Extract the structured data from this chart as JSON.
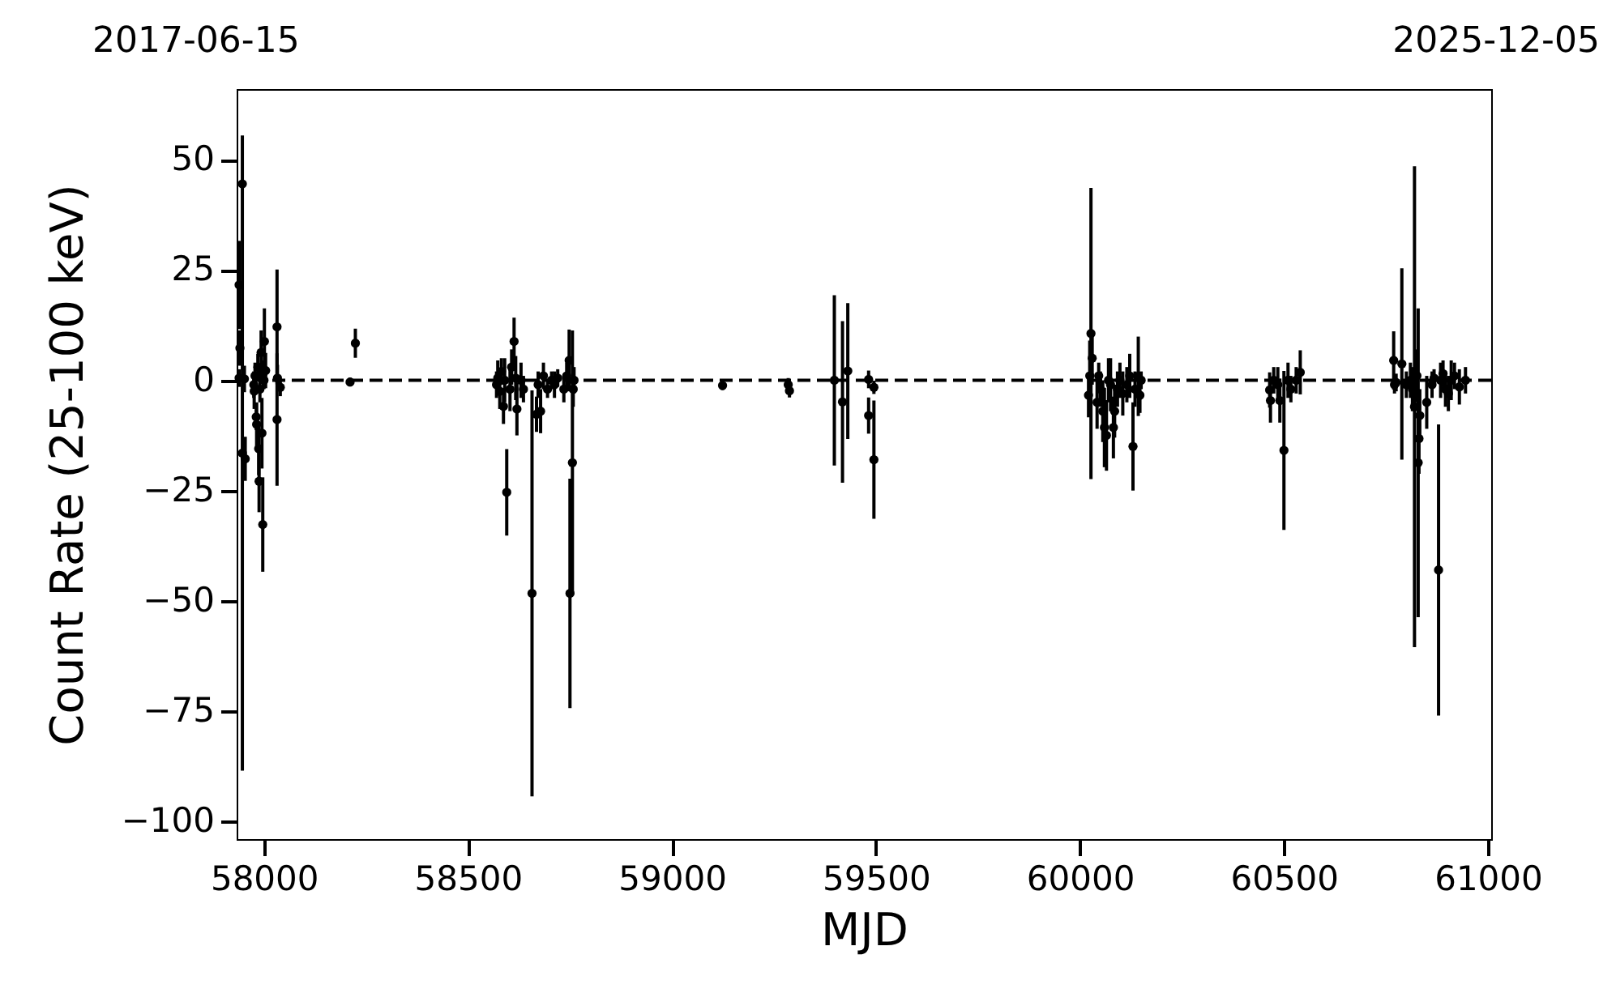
{
  "chart_data": {
    "type": "scatter",
    "xlabel": "MJD",
    "ylabel": "Count Rate (25-100 keV)",
    "annotations": [
      "2017-06-15",
      "2025-12-05"
    ],
    "xlim": [
      57933,
      61008
    ],
    "xticks": [
      58000,
      58500,
      59000,
      59500,
      60000,
      60500,
      61000
    ],
    "ylim": [
      -104,
      66
    ],
    "yticks": [
      -100,
      -75,
      -50,
      -25,
      0,
      25,
      50
    ],
    "grid": false,
    "marker": "circle",
    "ref_lines": [
      {
        "axis": "y",
        "value": 0,
        "color": "#000000",
        "line_style": "dashed"
      }
    ],
    "series": [
      {
        "color": "#000000",
        "x": [
          57947,
          57939,
          57941,
          57939,
          57952,
          57947,
          57954,
          57975,
          57976,
          57978,
          57981,
          57982,
          57987,
          57988,
          57997,
          57995,
          57993,
          58001,
          58004,
          57998,
          57990,
          58000,
          57985,
          58032,
          58032,
          58033,
          58040,
          58211,
          58224,
          58613,
          58570,
          58573,
          58578,
          58582,
          58587,
          58590,
          58595,
          58603,
          58607,
          58617,
          58620,
          58630,
          58636,
          58657,
          58668,
          58678,
          58672,
          58685,
          58695,
          58705,
          58712,
          58720,
          58735,
          58742,
          58748,
          58750,
          58756,
          58758,
          58760,
          59124,
          59285,
          59288,
          59398,
          59418,
          59431,
          59482,
          59482,
          59495,
          59495,
          60027,
          60021,
          60024,
          60030,
          60042,
          60046,
          60050,
          60056,
          60060,
          60065,
          60070,
          60075,
          60082,
          60085,
          60092,
          60098,
          60105,
          60115,
          60122,
          60130,
          60135,
          60143,
          60147,
          60150,
          60465,
          60467,
          60475,
          60485,
          60490,
          60500,
          60510,
          60517,
          60530,
          60540,
          60769,
          60771,
          60775,
          60789,
          60800,
          60810,
          60815,
          60820,
          60826,
          60829,
          60831,
          60833,
          60850,
          60863,
          60868,
          60879,
          60884,
          60890,
          60896,
          60903,
          60910,
          60918,
          60930,
          60945
        ],
        "values": [
          44.5,
          21.6,
          7.3,
          0.5,
          0.3,
          -16.5,
          -17.8,
          -1,
          -2.5,
          1,
          -8.3,
          -10,
          -15.5,
          -22.9,
          -32.7,
          -12,
          6.3,
          8.8,
          2.2,
          1.5,
          -2,
          0,
          3,
          12.1,
          -8.9,
          0.5,
          -1.6,
          -0.4,
          8.4,
          8.8,
          -1,
          0.5,
          -2.5,
          2,
          -5.9,
          0,
          -25.4,
          -2,
          3,
          0.5,
          -6.5,
          0,
          -2,
          -48.3,
          -7.7,
          -7,
          -1,
          1,
          -2,
          0,
          -1,
          0.5,
          -2,
          1,
          4.5,
          -48.3,
          -18.7,
          -2,
          0,
          -1.2,
          -1,
          -2.4,
          0,
          -4.9,
          2.1,
          0.2,
          -8,
          -1.6,
          -18,
          10.6,
          -3.4,
          1,
          5,
          -5,
          1,
          -2,
          -7,
          -10.7,
          -12.5,
          0,
          -1,
          -10.7,
          -7,
          -2,
          0,
          -3,
          -1,
          1,
          -15,
          -2,
          0.9,
          -3.4,
          0,
          -2.2,
          -4.6,
          0,
          -1,
          -4.6,
          -15.9,
          0,
          -2,
          0,
          1.8,
          4.5,
          -1,
          -0.5,
          3.7,
          -1,
          0,
          -2,
          -6,
          1,
          -18.7,
          -13.2,
          -8,
          -5,
          -1,
          0.5,
          -43,
          0,
          1.5,
          -2,
          -3,
          0,
          1,
          -1.5,
          0
        ],
        "errors": [
          null,
          10,
          4,
          2,
          3,
          72,
          5,
          3,
          4,
          3,
          3,
          5,
          6,
          7,
          10.7,
          8,
          5,
          7.5,
          4,
          3,
          3,
          2,
          3,
          13,
          15,
          3,
          2,
          1,
          3.3,
          5.4,
          3,
          4,
          4,
          3,
          4,
          5,
          9.8,
          5,
          4,
          5,
          6,
          4,
          3,
          46,
          4,
          5,
          3,
          3,
          2,
          2,
          3,
          2,
          3,
          3,
          7,
          26,
          30,
          4,
          3,
          1,
          1.5,
          1.5,
          19.3,
          18.3,
          15.4,
          2,
          4.1,
          1.5,
          13.4,
          33,
          5,
          8,
          6,
          6,
          3,
          4,
          7,
          9,
          8,
          5,
          6,
          7,
          6,
          4,
          4,
          5,
          4,
          5,
          10,
          4,
          9,
          4,
          2,
          4,
          5,
          3,
          4,
          5,
          18,
          4,
          3,
          3,
          5,
          6.6,
          2,
          2,
          21.7,
          3,
          4,
          5,
          54.5,
          6,
          35,
          8,
          6,
          6,
          3,
          2,
          33,
          4,
          3,
          4,
          4,
          4.5,
          3,
          4,
          3
        ]
      }
    ]
  }
}
